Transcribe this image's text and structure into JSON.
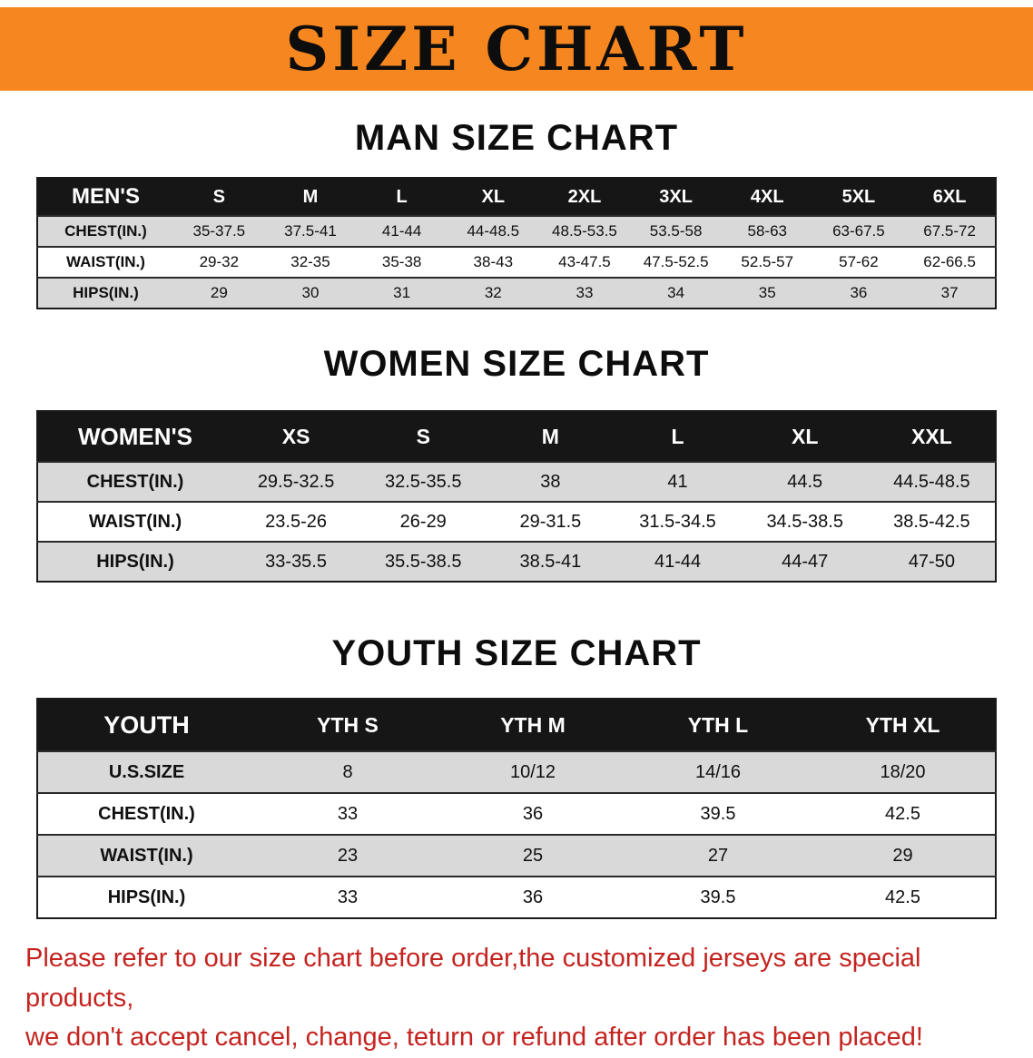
{
  "banner": {
    "title": "SIZE CHART"
  },
  "tables": {
    "men": {
      "heading": "MAN SIZE CHART",
      "header": [
        "MEN'S",
        "S",
        "M",
        "L",
        "XL",
        "2XL",
        "3XL",
        "4XL",
        "5XL",
        "6XL"
      ],
      "rows": [
        [
          "CHEST(IN.)",
          "35-37.5",
          "37.5-41",
          "41-44",
          "44-48.5",
          "48.5-53.5",
          "53.5-58",
          "58-63",
          "63-67.5",
          "67.5-72"
        ],
        [
          "WAIST(IN.)",
          "29-32",
          "32-35",
          "35-38",
          "38-43",
          "43-47.5",
          "47.5-52.5",
          "52.5-57",
          "57-62",
          "62-66.5"
        ],
        [
          "HIPS(IN.)",
          "29",
          "30",
          "31",
          "32",
          "33",
          "34",
          "35",
          "36",
          "37"
        ]
      ]
    },
    "women": {
      "heading": "WOMEN SIZE CHART",
      "header": [
        "WOMEN'S",
        "XS",
        "S",
        "M",
        "L",
        "XL",
        "XXL"
      ],
      "rows": [
        [
          "CHEST(IN.)",
          "29.5-32.5",
          "32.5-35.5",
          "38",
          "41",
          "44.5",
          "44.5-48.5"
        ],
        [
          "WAIST(IN.)",
          "23.5-26",
          "26-29",
          "29-31.5",
          "31.5-34.5",
          "34.5-38.5",
          "38.5-42.5"
        ],
        [
          "HIPS(IN.)",
          "33-35.5",
          "35.5-38.5",
          "38.5-41",
          "41-44",
          "44-47",
          "47-50"
        ]
      ]
    },
    "youth": {
      "heading": "YOUTH SIZE CHART",
      "header": [
        "YOUTH",
        "YTH S",
        "YTH M",
        "YTH L",
        "YTH XL"
      ],
      "rows": [
        [
          "U.S.SIZE",
          "8",
          "10/12",
          "14/16",
          "18/20"
        ],
        [
          "CHEST(IN.)",
          "33",
          "36",
          "39.5",
          "42.5"
        ],
        [
          "WAIST(IN.)",
          "23",
          "25",
          "27",
          "29"
        ],
        [
          "HIPS(IN.)",
          "33",
          "36",
          "39.5",
          "42.5"
        ]
      ]
    }
  },
  "footer": {
    "line1": "Please refer to our size chart before order,the customized jerseys are special products,",
    "line2": "we don't accept cancel, change, teturn or refund after order has been placed!"
  },
  "colors": {
    "banner_orange": "#f6861f",
    "table_header_black": "#161616",
    "row_gray": "#d9d9d9",
    "footer_red": "#c42420"
  }
}
